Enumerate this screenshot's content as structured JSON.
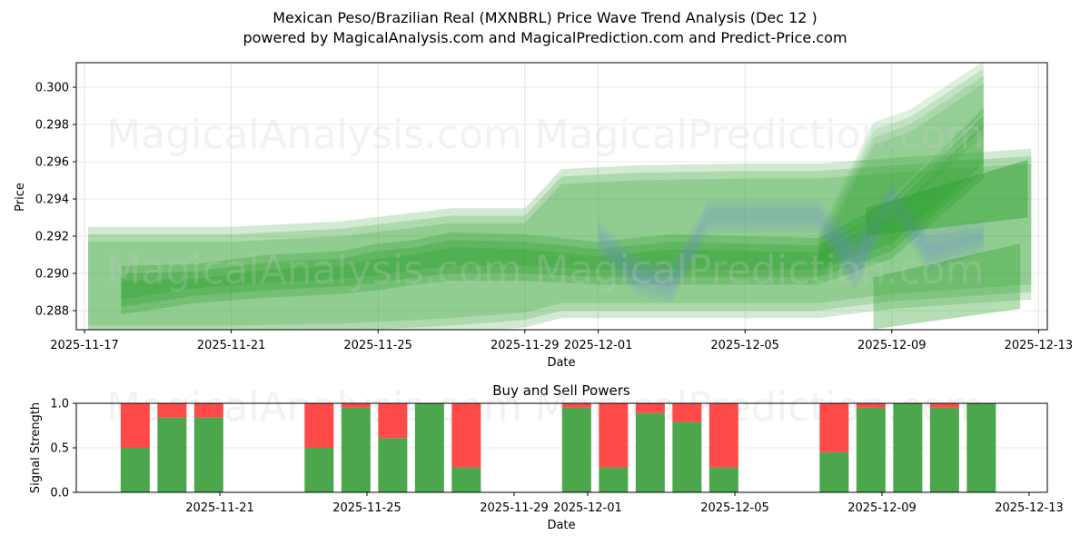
{
  "header": {
    "title": "Mexican Peso/Brazilian Real (MXNBRL) Price Wave Trend Analysis (Dec 12 )",
    "subtitle": "powered by MagicalAnalysis.com and MagicalPrediction.com and Predict-Price.com"
  },
  "watermarks": [
    "MagicalAnalysis.com",
    "MagicalPrediction.com"
  ],
  "colors": {
    "band_green": "#2ca02c",
    "band_blue": "#6f8fd0",
    "buy": "#4ca64c",
    "sell": "#ff4a4a",
    "grid": "#e0e0e0"
  },
  "chart_data": [
    {
      "type": "area",
      "title": "Price Wave Trend Analysis",
      "xlabel": "Date",
      "ylabel": "Price",
      "ylim": [
        0.287,
        0.3013
      ],
      "xlim": [
        "2025-11-16.8",
        "2025-12-13.2"
      ],
      "grid": true,
      "x_ticks": [
        "2025-11-17",
        "2025-11-21",
        "2025-11-25",
        "2025-11-29",
        "2025-12-01",
        "2025-12-05",
        "2025-12-09",
        "2025-12-13"
      ],
      "y_ticks": [
        "0.288",
        "0.290",
        "0.292",
        "0.294",
        "0.296",
        "0.298",
        "0.300"
      ],
      "series": [
        {
          "name": "wide-band-upper",
          "color": "green",
          "opacity": 0.35,
          "x": [
            0.1,
            4,
            7,
            10,
            12,
            13,
            15,
            18,
            20,
            22,
            25.8
          ],
          "upper": [
            0.2921,
            0.2921,
            0.2924,
            0.2931,
            0.2931,
            0.2952,
            0.2954,
            0.2955,
            0.2955,
            0.2958,
            0.2963
          ],
          "lower": [
            0.2868,
            0.2868,
            0.2869,
            0.2872,
            0.2875,
            0.288,
            0.288,
            0.288,
            0.288,
            0.2885,
            0.289
          ]
        },
        {
          "name": "core-band",
          "color": "green",
          "opacity": 0.45,
          "x": [
            1,
            3,
            5,
            7,
            8,
            9,
            10,
            12,
            14,
            16,
            18,
            20,
            22,
            24.5
          ],
          "upper": [
            0.29,
            0.2901,
            0.2906,
            0.2908,
            0.2912,
            0.2914,
            0.2918,
            0.2917,
            0.2913,
            0.2917,
            0.2916,
            0.2915,
            0.2935,
            0.2985
          ],
          "lower": [
            0.2882,
            0.2888,
            0.2891,
            0.2893,
            0.2895,
            0.2898,
            0.29,
            0.29,
            0.2898,
            0.2898,
            0.2898,
            0.2898,
            0.2912,
            0.2955
          ]
        },
        {
          "name": "upper-trend-band",
          "color": "green",
          "opacity": 0.25,
          "x": [
            20,
            21.5,
            22.5,
            24.5
          ],
          "upper": [
            0.2915,
            0.2975,
            0.2982,
            0.3008
          ],
          "lower": [
            0.2905,
            0.2925,
            0.2945,
            0.298
          ]
        },
        {
          "name": "blue-band",
          "color": "blue",
          "opacity": 0.25,
          "x": [
            14,
            15,
            16,
            17,
            18,
            20,
            21,
            22,
            23,
            24.5
          ],
          "upper": [
            0.2925,
            0.2905,
            0.29,
            0.2935,
            0.2935,
            0.2935,
            0.2915,
            0.2945,
            0.292,
            0.2925
          ],
          "lower": [
            0.2915,
            0.2893,
            0.2888,
            0.2926,
            0.2926,
            0.2926,
            0.2895,
            0.2935,
            0.2905,
            0.2915
          ]
        },
        {
          "name": "right-flag-band",
          "color": "green",
          "opacity": 0.45,
          "x": [
            21.3,
            25.7
          ],
          "upper": [
            0.2935,
            0.2961
          ],
          "lower": [
            0.292,
            0.293
          ]
        },
        {
          "name": "low-flag-band",
          "color": "green",
          "opacity": 0.35,
          "x": [
            21.5,
            25.5
          ],
          "upper": [
            0.2898,
            0.2916
          ],
          "lower": [
            0.287,
            0.2881
          ]
        }
      ]
    },
    {
      "type": "bar",
      "title": "Buy and Sell Powers",
      "xlabel": "Date",
      "ylabel": "Signal Strength",
      "ylim": [
        0.0,
        1.0
      ],
      "y_ticks": [
        "0.0",
        "0.5",
        "1.0"
      ],
      "x_ticks": [
        "2025-11-21",
        "2025-11-25",
        "2025-11-29",
        "2025-12-01",
        "2025-12-05",
        "2025-12-09",
        "2025-12-13"
      ],
      "grid": true,
      "categories": [
        "2025-11-19",
        "2025-11-20",
        "2025-11-21",
        "2025-11-24",
        "2025-11-25",
        "2025-11-26",
        "2025-11-27",
        "2025-11-28",
        "2025-12-01",
        "2025-12-02",
        "2025-12-03",
        "2025-12-04",
        "2025-12-05",
        "2025-12-08",
        "2025-12-09",
        "2025-12-10",
        "2025-12-11",
        "2025-12-12"
      ],
      "series": [
        {
          "name": "Buy",
          "color": "green",
          "values": [
            0.5,
            0.84,
            0.84,
            0.5,
            0.95,
            0.61,
            1.0,
            0.28,
            0.95,
            0.28,
            0.89,
            0.79,
            0.28,
            0.45,
            0.95,
            1.0,
            0.95,
            1.0
          ]
        },
        {
          "name": "Sell",
          "color": "red",
          "values": [
            0.5,
            0.16,
            0.16,
            0.5,
            0.05,
            0.39,
            0.0,
            0.72,
            0.05,
            0.72,
            0.11,
            0.21,
            0.72,
            0.55,
            0.05,
            0.0,
            0.05,
            0.0
          ]
        }
      ],
      "bar_offsets_days": [
        1.7,
        2.7,
        3.7,
        6.7,
        7.7,
        8.7,
        9.7,
        10.7,
        13.7,
        14.7,
        15.7,
        16.7,
        17.7,
        20.7,
        21.7,
        22.7,
        23.7,
        24.7
      ]
    }
  ]
}
